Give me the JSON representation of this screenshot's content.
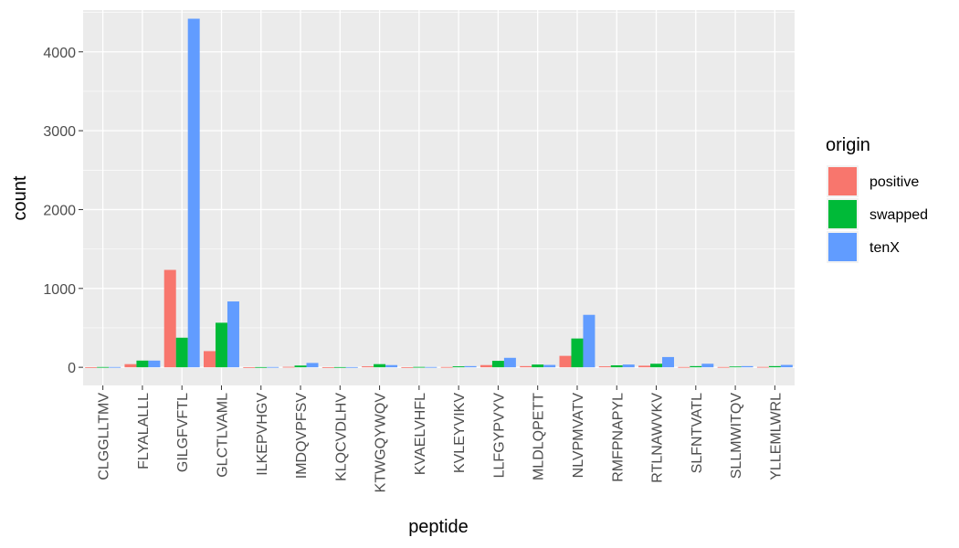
{
  "chart_data": {
    "type": "bar",
    "xlabel": "peptide",
    "ylabel": "count",
    "ylim": [
      -230,
      4530
    ],
    "yticks": [
      0,
      1000,
      2000,
      3000,
      4000
    ],
    "grid": true,
    "legend": {
      "title": "origin",
      "position": "right"
    },
    "categories": [
      "CLGGLLTMV",
      "FLYALALLL",
      "GILGFVFTL",
      "GLCTLVAML",
      "ILKEPVHGV",
      "IMDQVPFSV",
      "KLQCVDLHV",
      "KTWGQYWQV",
      "KVAELVHFL",
      "KVLEYVIKV",
      "LLFGYPVYV",
      "MLDLQPETT",
      "NLVPMVATV",
      "RMFPNAPYL",
      "RTLNAWVKV",
      "SLFNTVATL",
      "SLLMWITQV",
      "YLLEMLWRL"
    ],
    "series": [
      {
        "name": "positive",
        "color": "#F8766D",
        "values": [
          2,
          40,
          1235,
          205,
          2,
          6,
          2,
          12,
          2,
          4,
          28,
          15,
          145,
          12,
          20,
          4,
          4,
          5
        ]
      },
      {
        "name": "swapped",
        "color": "#00BA38",
        "values": [
          4,
          85,
          375,
          565,
          3,
          22,
          3,
          40,
          5,
          12,
          82,
          35,
          365,
          25,
          45,
          15,
          10,
          15
        ]
      },
      {
        "name": "tenX",
        "color": "#619CFF",
        "values": [
          4,
          85,
          4420,
          835,
          4,
          55,
          3,
          28,
          4,
          15,
          120,
          30,
          665,
          35,
          130,
          45,
          15,
          30
        ]
      }
    ]
  }
}
